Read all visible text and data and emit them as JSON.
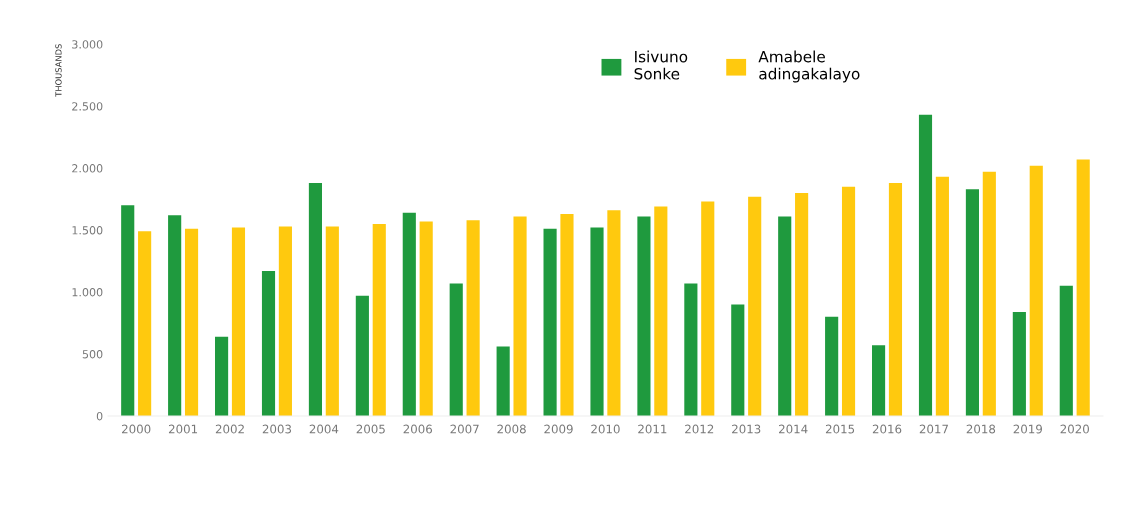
{
  "chart_data": {
    "type": "bar",
    "ylabel": "THOUSANDS",
    "categories": [
      "2000",
      "2001",
      "2002",
      "2003",
      "2004",
      "2005",
      "2006",
      "2007",
      "2008",
      "2009",
      "2010",
      "2011",
      "2012",
      "2013",
      "2014",
      "2015",
      "2016",
      "2017",
      "2018",
      "2019",
      "2020"
    ],
    "series": [
      {
        "name": "Isivuno\nSonke",
        "color": "#1f9a3e",
        "values": [
          1700,
          1620,
          640,
          1170,
          1880,
          970,
          1640,
          1070,
          560,
          1510,
          1520,
          1610,
          1070,
          900,
          1610,
          800,
          570,
          2430,
          1830,
          840,
          1050
        ]
      },
      {
        "name": "Amabele\nadingakalayo",
        "color": "#ffc90e",
        "values": [
          1490,
          1510,
          1520,
          1530,
          1530,
          1550,
          1570,
          1580,
          1610,
          1630,
          1660,
          1690,
          1730,
          1770,
          1800,
          1850,
          1880,
          1930,
          1970,
          2020,
          2070
        ]
      }
    ],
    "ylim": [
      0,
      3000
    ],
    "yticks": [
      0,
      500,
      {
        "value": 1000,
        "label": "1.000"
      },
      {
        "value": 1500,
        "label": "1.500"
      },
      {
        "value": 2000,
        "label": "2.000"
      },
      {
        "value": 2500,
        "label": "2.500"
      },
      {
        "value": 3000,
        "label": "3.000"
      }
    ],
    "grid": false,
    "legend": "top right"
  }
}
